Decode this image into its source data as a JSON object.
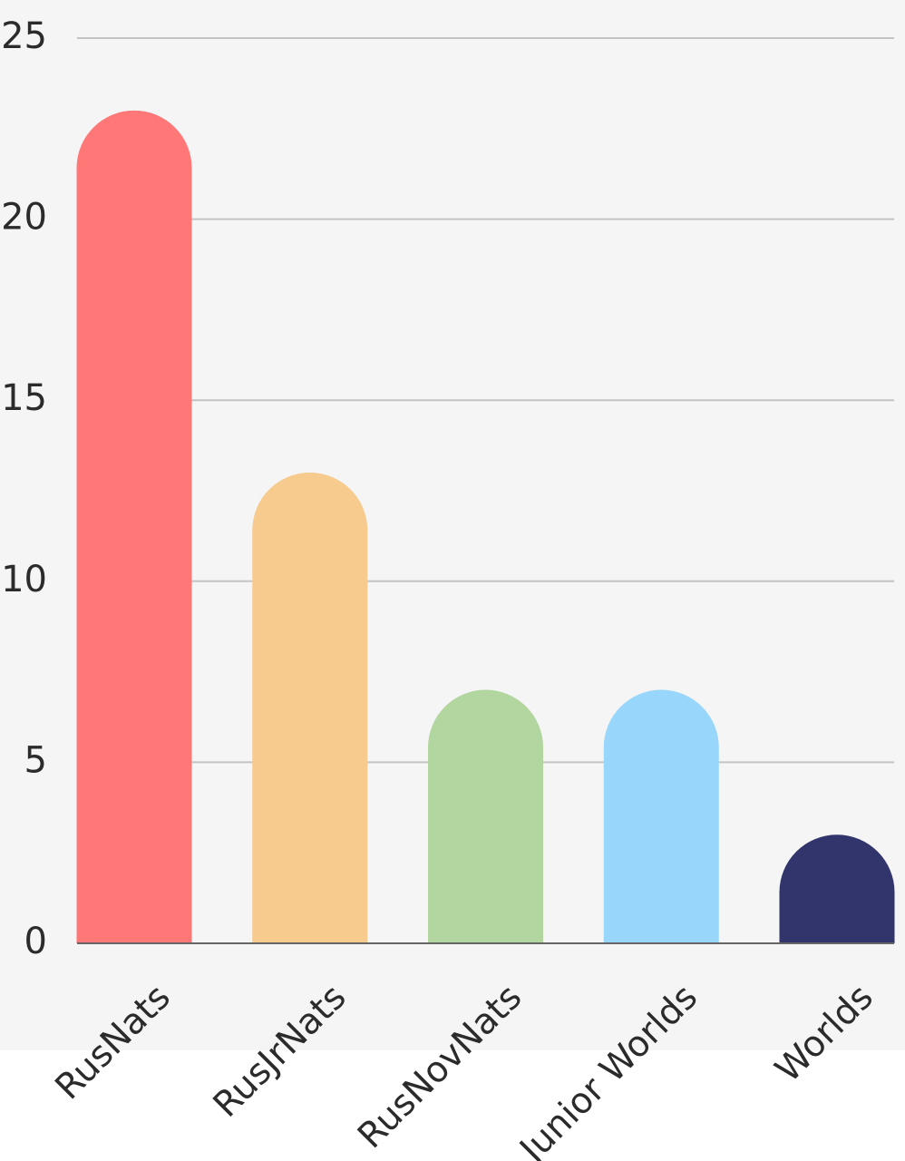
{
  "chart_data": {
    "type": "bar",
    "categories": [
      "RusNats",
      "RusJrNats",
      "RusNovNats",
      "Junior Worlds",
      "Worlds"
    ],
    "values": [
      23,
      13,
      7,
      7,
      3
    ],
    "colors": [
      "#ff7777",
      "#f7ca8e",
      "#b1d69f",
      "#98d6fb",
      "#31356b"
    ],
    "ylim": [
      0,
      25
    ],
    "yticks": [
      0,
      5,
      10,
      15,
      20,
      25
    ],
    "grid": true,
    "bar_style": "rounded-top",
    "background": "#f5f5f5",
    "gridline_color": "#c4c4c4",
    "axis_color": "#666666"
  }
}
